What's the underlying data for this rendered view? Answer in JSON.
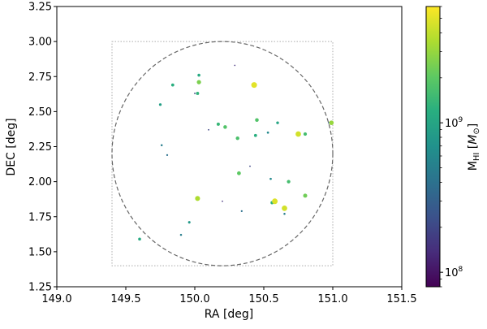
{
  "chart_data": {
    "type": "scatter",
    "title": "",
    "xlabel": "RA [deg]",
    "ylabel": "DEC [deg]",
    "xlim": [
      149.0,
      151.5
    ],
    "ylim": [
      1.25,
      3.25
    ],
    "xticks": [
      149.0,
      149.5,
      150.0,
      150.5,
      151.0,
      151.5
    ],
    "xtick_labels": [
      "149.0",
      "149.5",
      "150.0",
      "150.5",
      "151.0",
      "151.5"
    ],
    "yticks": [
      1.25,
      1.5,
      1.75,
      2.0,
      2.25,
      2.5,
      2.75,
      3.0,
      3.25
    ],
    "ytick_labels": [
      "1.25",
      "1.50",
      "1.75",
      "2.00",
      "2.25",
      "2.50",
      "2.75",
      "3.00",
      "3.25"
    ],
    "grid": false,
    "overlays": {
      "survey_box": {
        "ra": [
          149.4,
          151.0
        ],
        "dec": [
          1.4,
          3.0
        ],
        "style": "dotted",
        "color": "#aaaaaa"
      },
      "survey_circle": {
        "center_ra": 150.2,
        "center_dec": 2.2,
        "radius_ra": 0.8,
        "radius_dec": 0.8,
        "style": "dashed",
        "color": "#666666"
      }
    },
    "colorbar": {
      "label": "M_HI [M_⊙]",
      "scale": "log",
      "min": 80000000.0,
      "max": 6000000000.0,
      "colormap": "viridis",
      "ticks": [
        {
          "value": 100000000.0,
          "base": "10",
          "exp": "8"
        },
        {
          "value": 1000000000.0,
          "base": "10",
          "exp": "9"
        }
      ]
    },
    "points": [
      {
        "ra": 150.29,
        "dec": 2.83,
        "mass": 150000000.0
      },
      {
        "ra": 150.03,
        "dec": 2.76,
        "mass": 1100000000.0
      },
      {
        "ra": 150.03,
        "dec": 2.71,
        "mass": 2500000000.0
      },
      {
        "ra": 149.84,
        "dec": 2.69,
        "mass": 1200000000.0
      },
      {
        "ra": 150.43,
        "dec": 2.69,
        "mass": 5000000000.0
      },
      {
        "ra": 150.02,
        "dec": 2.63,
        "mass": 1300000000.0
      },
      {
        "ra": 150.0,
        "dec": 2.63,
        "mass": 200000000.0
      },
      {
        "ra": 149.75,
        "dec": 2.55,
        "mass": 900000000.0
      },
      {
        "ra": 150.45,
        "dec": 2.44,
        "mass": 1800000000.0
      },
      {
        "ra": 150.6,
        "dec": 2.42,
        "mass": 1000000000.0
      },
      {
        "ra": 150.97,
        "dec": 2.42,
        "mass": 250000000.0
      },
      {
        "ra": 150.99,
        "dec": 2.42,
        "mass": 3000000000.0
      },
      {
        "ra": 150.17,
        "dec": 2.41,
        "mass": 1400000000.0
      },
      {
        "ra": 150.22,
        "dec": 2.39,
        "mass": 1800000000.0
      },
      {
        "ra": 150.1,
        "dec": 2.37,
        "mass": 200000000.0
      },
      {
        "ra": 150.53,
        "dec": 2.35,
        "mass": 600000000.0
      },
      {
        "ra": 150.75,
        "dec": 2.34,
        "mass": 4500000000.0
      },
      {
        "ra": 150.8,
        "dec": 2.34,
        "mass": 1600000000.0
      },
      {
        "ra": 150.44,
        "dec": 2.33,
        "mass": 1200000000.0
      },
      {
        "ra": 150.31,
        "dec": 2.31,
        "mass": 1700000000.0
      },
      {
        "ra": 149.76,
        "dec": 2.26,
        "mass": 500000000.0
      },
      {
        "ra": 149.8,
        "dec": 2.19,
        "mass": 400000000.0
      },
      {
        "ra": 150.4,
        "dec": 2.11,
        "mass": 200000000.0
      },
      {
        "ra": 150.32,
        "dec": 2.06,
        "mass": 2000000000.0
      },
      {
        "ra": 150.55,
        "dec": 2.02,
        "mass": 600000000.0
      },
      {
        "ra": 150.68,
        "dec": 2.0,
        "mass": 1600000000.0
      },
      {
        "ra": 150.02,
        "dec": 1.88,
        "mass": 3500000000.0
      },
      {
        "ra": 150.8,
        "dec": 1.9,
        "mass": 2300000000.0
      },
      {
        "ra": 150.2,
        "dec": 1.86,
        "mass": 150000000.0
      },
      {
        "ra": 150.56,
        "dec": 1.85,
        "mass": 1300000000.0
      },
      {
        "ra": 150.58,
        "dec": 1.86,
        "mass": 4800000000.0
      },
      {
        "ra": 150.65,
        "dec": 1.81,
        "mass": 4500000000.0
      },
      {
        "ra": 150.34,
        "dec": 1.79,
        "mass": 400000000.0
      },
      {
        "ra": 150.65,
        "dec": 1.77,
        "mass": 500000000.0
      },
      {
        "ra": 149.96,
        "dec": 1.71,
        "mass": 800000000.0
      },
      {
        "ra": 149.9,
        "dec": 1.62,
        "mass": 500000000.0
      },
      {
        "ra": 149.6,
        "dec": 1.59,
        "mass": 1100000000.0
      }
    ]
  }
}
